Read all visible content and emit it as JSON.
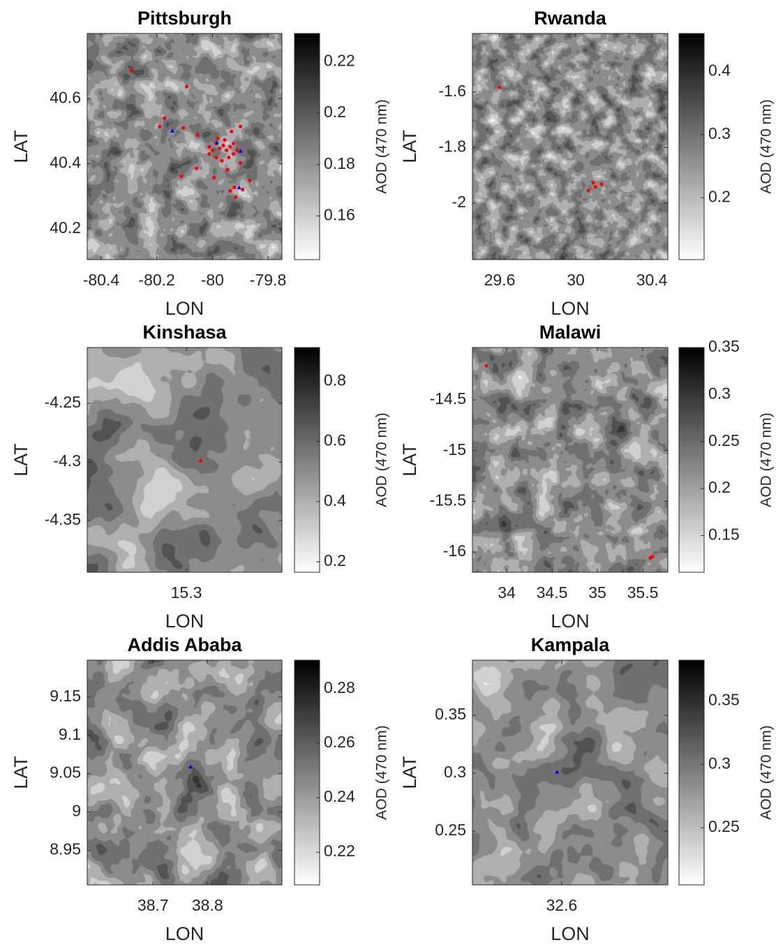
{
  "chart_data": [
    {
      "type": "contour",
      "title": "Pittsburgh",
      "xlabel": "LON",
      "ylabel": "LAT",
      "xlim": [
        -80.45,
        -79.75
      ],
      "ylim": [
        40.105,
        40.8
      ],
      "xticks": [
        -80.4,
        -80.2,
        -80,
        -79.8
      ],
      "yticks": [
        40.2,
        40.4,
        40.6
      ],
      "colorbar": {
        "label": "AOD (470 nm)",
        "lim": [
          0.143,
          0.231
        ],
        "ticks": [
          0.16,
          0.18,
          0.2,
          0.22
        ]
      },
      "series": [
        {
          "marker": "circle",
          "color": "#ff0000",
          "x": [
            -80.292,
            -80.092,
            -80.172,
            -80.189,
            -80.104,
            -80.054,
            -79.931,
            -79.899,
            -80.112,
            -80.057,
            -79.994,
            -79.946,
            -79.899,
            -79.866,
            -79.921,
            -79.916,
            -79.936,
            -79.891,
            -80.011,
            -79.999,
            -79.986,
            -79.974,
            -79.961,
            -79.949,
            -79.936,
            -79.924,
            -79.986,
            -79.966,
            -79.941,
            -79.924,
            -80.011,
            -79.911,
            -79.956,
            -79.981
          ],
          "y": [
            40.686,
            40.637,
            40.54,
            40.514,
            40.51,
            40.488,
            40.499,
            40.514,
            40.361,
            40.385,
            40.357,
            40.381,
            40.402,
            40.348,
            40.327,
            40.297,
            40.316,
            40.32,
            40.452,
            40.441,
            40.462,
            40.447,
            40.456,
            40.441,
            40.452,
            40.462,
            40.419,
            40.409,
            40.419,
            40.43,
            40.43,
            40.441,
            40.473,
            40.477
          ]
        },
        {
          "marker": "triangle",
          "color": "#0000ff",
          "x": [
            -80.144,
            -79.984,
            -79.899,
            -79.904
          ],
          "y": [
            40.501,
            40.465,
            40.439,
            40.327
          ]
        }
      ]
    },
    {
      "type": "contour",
      "title": "Rwanda",
      "xlabel": "LON",
      "ylabel": "LAT",
      "xlim": [
        29.457,
        30.484
      ],
      "ylim": [
        -2.204,
        -1.389
      ],
      "xticks": [
        29.6,
        30,
        30.4
      ],
      "yticks": [
        -2,
        -1.8,
        -1.6
      ],
      "colorbar": {
        "label": "AOD (470 nm)",
        "lim": [
          0.102,
          0.46
        ],
        "ticks": [
          0.2,
          0.3,
          0.4
        ]
      },
      "series": [
        {
          "marker": "circle",
          "color": "#ff0000",
          "x": [
            29.6,
            30.092,
            30.066,
            30.136,
            30.103
          ],
          "y": [
            -1.583,
            -1.927,
            -1.955,
            -1.932,
            -1.942
          ]
        }
      ]
    },
    {
      "type": "contour",
      "title": "Kinshasa",
      "xlabel": "LON",
      "ylabel": "LAT",
      "xlim": [
        15.2155,
        15.3815
      ],
      "ylim": [
        -4.394,
        -4.2024
      ],
      "xticks": [
        15.3
      ],
      "yticks": [
        -4.35,
        -4.3,
        -4.25
      ],
      "colorbar": {
        "label": "AOD (470 nm)",
        "lim": [
          0.165,
          0.912
        ],
        "ticks": [
          0.2,
          0.4,
          0.6,
          0.8
        ]
      },
      "series": [
        {
          "marker": "circle",
          "color": "#ff0000",
          "x": [
            15.312
          ],
          "y": [
            -4.299
          ]
        }
      ]
    },
    {
      "type": "contour",
      "title": "Malawi",
      "xlabel": "LON",
      "ylabel": "LAT",
      "xlim": [
        33.623,
        35.777
      ],
      "ylim": [
        -16.2,
        -13.983
      ],
      "xticks": [
        34,
        34.5,
        35,
        35.5
      ],
      "yticks": [
        -16,
        -15.5,
        -15,
        -14.5
      ],
      "colorbar": {
        "label": "AOD (470 nm)",
        "lim": [
          0.111,
          0.35
        ],
        "ticks": [
          0.15,
          0.2,
          0.25,
          0.3,
          0.35
        ]
      },
      "series": [
        {
          "marker": "circle",
          "color": "#ff0000",
          "x": [
            33.777,
            35.585,
            35.608
          ],
          "y": [
            -14.162,
            -16.059,
            -16.045
          ]
        }
      ]
    },
    {
      "type": "contour",
      "title": "Addis Ababa",
      "xlabel": "LON",
      "ylabel": "LAT",
      "xlim": [
        38.579,
        38.937
      ],
      "ylim": [
        8.905,
        9.198
      ],
      "xticks": [
        38.7,
        38.8
      ],
      "yticks": [
        8.95,
        9,
        9.05,
        9.1,
        9.15
      ],
      "colorbar": {
        "label": "AOD (470 nm)",
        "lim": [
          0.208,
          0.2905
        ],
        "ticks": [
          0.22,
          0.24,
          0.26,
          0.28
        ]
      },
      "series": [
        {
          "marker": "triangle",
          "color": "#0000ff",
          "x": [
            38.769
          ],
          "y": [
            9.059
          ]
        }
      ]
    },
    {
      "type": "contour",
      "title": "Kampala",
      "xlabel": "LON",
      "ylabel": "LAT",
      "xlim": [
        32.523,
        32.6916
      ],
      "ylim": [
        0.2036,
        0.3976
      ],
      "xticks": [
        32.6
      ],
      "yticks": [
        0.25,
        0.3,
        0.35
      ],
      "colorbar": {
        "label": "AOD (470 nm)",
        "lim": [
          0.205,
          0.382
        ],
        "ticks": [
          0.25,
          0.3,
          0.35
        ]
      },
      "series": [
        {
          "marker": "triangle",
          "color": "#0000ff",
          "x": [
            32.596
          ],
          "y": [
            0.3012
          ]
        }
      ]
    }
  ]
}
